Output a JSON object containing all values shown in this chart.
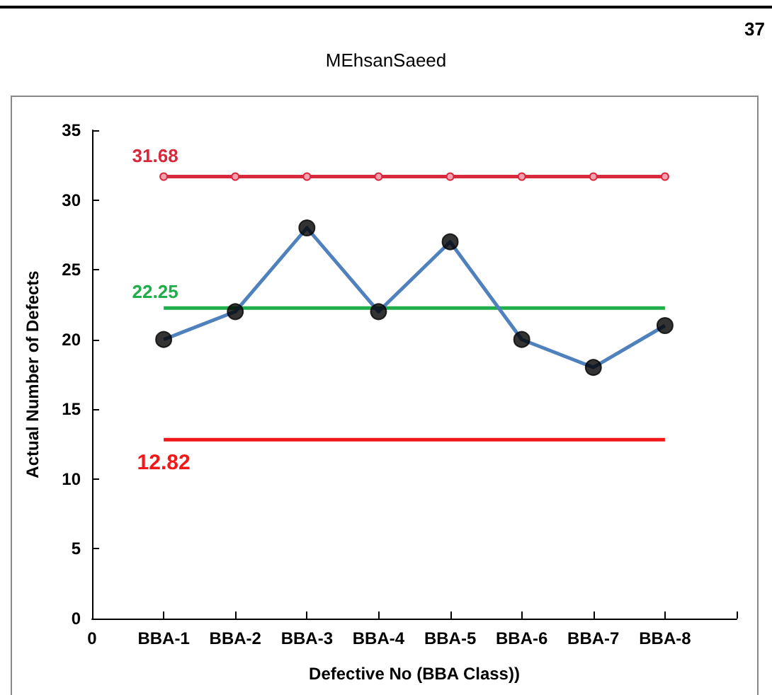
{
  "chart_data": {
    "type": "line",
    "xlabel": "Defective No (BBA Class))",
    "ylabel": "Actual Number of Defects",
    "annotations": [
      "37",
      "MEhsanSaeed"
    ],
    "categories": [
      "0",
      "BBA-1",
      "BBA-2",
      "BBA-3",
      "BBA-4",
      "BBA-5",
      "BBA-6",
      "BBA-7",
      "BBA-8",
      null
    ],
    "series": [
      {
        "color": "#d8283c",
        "marker": "circle",
        "values": [
          null,
          31.68,
          31.68,
          31.68,
          31.68,
          31.68,
          31.68,
          31.68,
          31.68,
          null
        ],
        "value_labels": [
          null,
          "31.68",
          null,
          null,
          null,
          null,
          null,
          null,
          null,
          null
        ]
      },
      {
        "color": "#1fae4a",
        "marker": "none",
        "values": [
          null,
          22.25,
          22.25,
          22.25,
          22.25,
          22.25,
          22.25,
          22.25,
          22.25,
          null
        ],
        "value_labels": [
          null,
          "22.25",
          null,
          null,
          null,
          null,
          null,
          null,
          null,
          null
        ]
      },
      {
        "color": "#f01818",
        "marker": "none",
        "values": [
          null,
          12.82,
          12.82,
          12.82,
          12.82,
          12.82,
          12.82,
          12.82,
          12.82,
          null
        ],
        "value_labels": [
          null,
          "12.82",
          null,
          null,
          null,
          null,
          null,
          null,
          null,
          null
        ]
      },
      {
        "color": "#4f81bd",
        "marker": "none",
        "values": [
          null,
          20,
          22,
          28,
          22,
          27,
          20,
          18,
          21,
          null
        ]
      },
      {
        "type": "scatter",
        "color": "#000000",
        "marker": "circle",
        "values": [
          null,
          20,
          22,
          28,
          22,
          27,
          20,
          18,
          21,
          null
        ]
      }
    ],
    "ylim": [
      0,
      35
    ],
    "yticks": [
      0,
      5,
      10,
      15,
      20,
      25,
      30,
      35
    ],
    "grid": false
  }
}
